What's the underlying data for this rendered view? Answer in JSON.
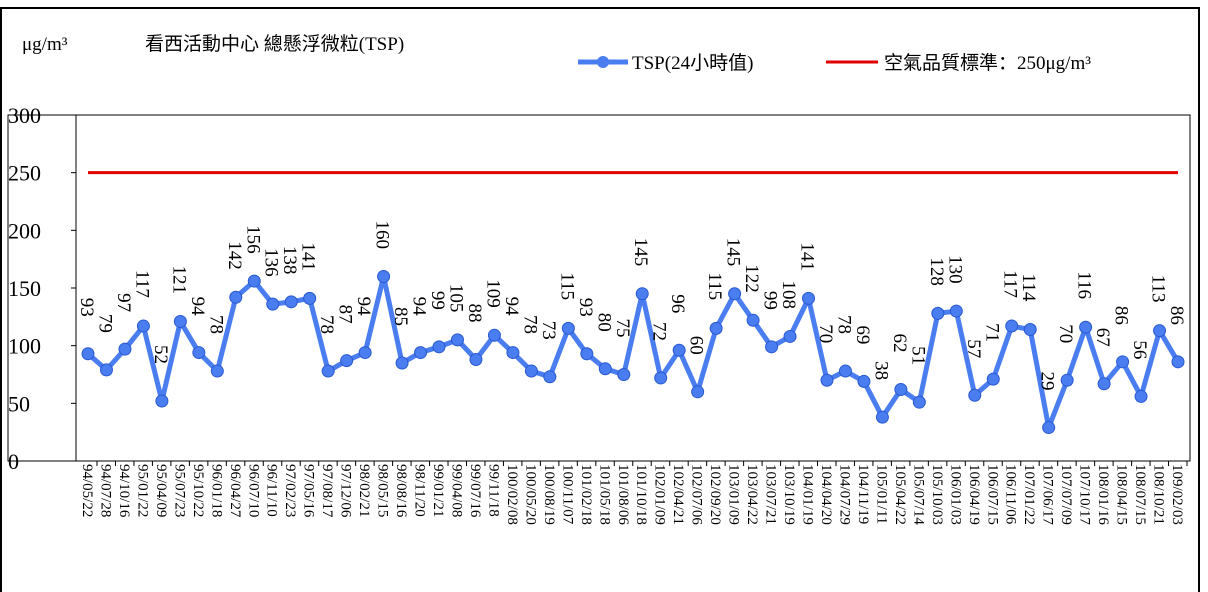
{
  "chart_data": {
    "type": "line",
    "unit": "μg/m³",
    "title": "看西活動中心 總懸浮微粒(TSP)",
    "categories": [
      "94/05/22",
      "94/07/28",
      "94/10/16",
      "95/01/22",
      "95/04/09",
      "95/07/23",
      "95/10/22",
      "96/01/18",
      "96/04/27",
      "96/07/10",
      "96/11/10",
      "97/02/23",
      "97/05/16",
      "97/08/17",
      "97/12/06",
      "98/02/21",
      "98/05/15",
      "98/08/16",
      "98/11/20",
      "99/01/21",
      "99/04/08",
      "99/07/16",
      "99/11/18",
      "100/02/08",
      "100/05/20",
      "100/08/19",
      "100/11/07",
      "101/02/18",
      "101/05/18",
      "101/08/06",
      "101/10/18",
      "102/01/09",
      "102/04/21",
      "102/07/06",
      "102/09/20",
      "103/01/09",
      "103/04/22",
      "103/07/21",
      "103/10/19",
      "104/01/19",
      "104/04/20",
      "104/07/29",
      "104/11/19",
      "105/01/11",
      "105/04/22",
      "105/07/14",
      "105/10/03",
      "106/01/03",
      "106/04/19",
      "106/07/15",
      "106/11/06",
      "107/01/22",
      "107/06/17",
      "107/07/09",
      "107/10/17",
      "108/01/16",
      "108/04/15",
      "108/07/15",
      "108/10/21",
      "109/02/03"
    ],
    "series": [
      {
        "name": "TSP(24小時值)",
        "color": "#4a7ef0",
        "values": [
          93,
          79,
          97,
          117,
          52,
          121,
          94,
          78,
          142,
          156,
          136,
          138,
          141,
          78,
          87,
          94,
          160,
          85,
          94,
          99,
          105,
          88,
          109,
          94,
          78,
          73,
          115,
          93,
          80,
          75,
          145,
          72,
          96,
          60,
          115,
          145,
          122,
          99,
          108,
          141,
          70,
          78,
          69,
          38,
          62,
          51,
          128,
          130,
          57,
          71,
          117,
          114,
          29,
          70,
          116,
          67,
          86,
          56,
          113,
          86
        ]
      }
    ],
    "standard": {
      "name": "空氣品質標準：250μg/m³",
      "value": 250,
      "color": "#e00000"
    },
    "ylim": [
      0,
      300
    ],
    "yticks": [
      0,
      50,
      100,
      150,
      200,
      250,
      300
    ]
  }
}
